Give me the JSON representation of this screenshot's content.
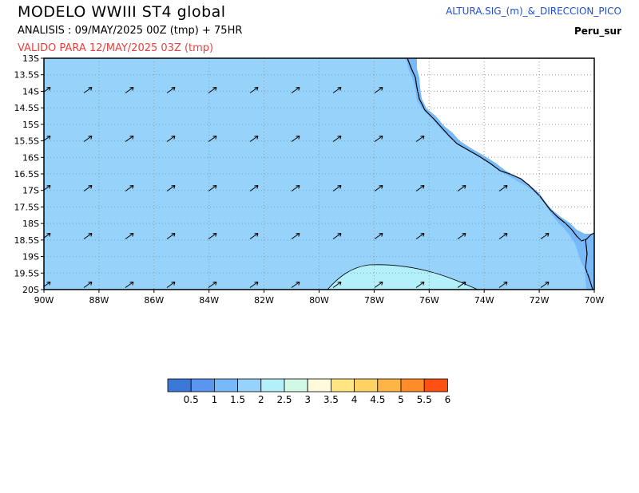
{
  "header": {
    "title": "MODELO  WWIII  ST4  global",
    "analysis": "ANALISIS : 09/MAY/2025 00Z  (tmp) + 75HR",
    "valid": "VALIDO PARA  12/MAY/2025 03Z  (tmp)",
    "variable": "ALTURA.SIG_(m)_&_DIRECCION_PICO",
    "region": "Peru_sur"
  },
  "map": {
    "lat_labels": [
      "13S",
      "13.5S",
      "14S",
      "14.5S",
      "15S",
      "15.5S",
      "16S",
      "16.5S",
      "17S",
      "17.5S",
      "18S",
      "18.5S",
      "19S",
      "19.5S",
      "20S"
    ],
    "lon_labels": [
      "90W",
      "88W",
      "86W",
      "84W",
      "82W",
      "80W",
      "78W",
      "76W",
      "74W",
      "72W",
      "70W"
    ],
    "colors": {
      "sea_1p5_2": "#96d2fa",
      "sea_2_2p5": "#b4f0fa",
      "coastal_1_1p5": "#78b9fa",
      "land": "#ffffff",
      "frame": "#000000",
      "grid": "#9a9a9a"
    },
    "arrow_direction": "northeast"
  },
  "legend": {
    "colors": [
      "#3c78d8",
      "#5a96f0",
      "#78b9fa",
      "#96d2fa",
      "#b4f0fa",
      "#d2f8e6",
      "#fffadc",
      "#ffe682",
      "#ffd264",
      "#ffb446",
      "#ff8c28",
      "#ff5014"
    ],
    "labels": [
      "0.5",
      "1",
      "1.5",
      "2",
      "2.5",
      "3",
      "3.5",
      "4",
      "4.5",
      "5",
      "5.5",
      "6"
    ]
  }
}
